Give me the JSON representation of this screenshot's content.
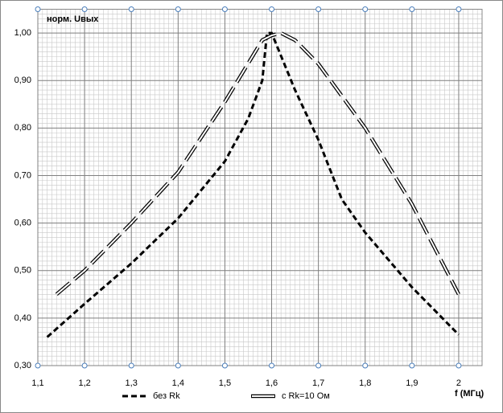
{
  "chart_data": {
    "type": "line",
    "y_label": "норм. Uвых",
    "x_label": "f (МГц)",
    "xlim": [
      1.1,
      2.05
    ],
    "xticks": [
      {
        "value": 1.1,
        "label": "1,1"
      },
      {
        "value": 1.2,
        "label": "1,2"
      },
      {
        "value": 1.3,
        "label": "1,3"
      },
      {
        "value": 1.4,
        "label": "1,4"
      },
      {
        "value": 1.5,
        "label": "1,5"
      },
      {
        "value": 1.6,
        "label": "1,6"
      },
      {
        "value": 1.7,
        "label": "1,7"
      },
      {
        "value": 1.8,
        "label": "1,8"
      },
      {
        "value": 1.9,
        "label": "1,9"
      },
      2
    ],
    "ylim": [
      0.3,
      1.05
    ],
    "yticks": [
      {
        "value": 0.3,
        "label": "0,30"
      },
      {
        "value": 0.4,
        "label": "0,40"
      },
      {
        "value": 0.5,
        "label": "0,50"
      },
      {
        "value": 0.6,
        "label": "0,60"
      },
      {
        "value": 0.7,
        "label": "0,70"
      },
      {
        "value": 0.8,
        "label": "0,80"
      },
      {
        "value": 0.9,
        "label": "0,90"
      },
      {
        "value": 1.0,
        "label": "1,00"
      }
    ],
    "grid": true,
    "series": [
      {
        "name": "без Rk",
        "color": "#000000",
        "style": "dashed",
        "x": [
          1.12,
          1.2,
          1.3,
          1.4,
          1.5,
          1.55,
          1.58,
          1.59,
          1.6,
          1.65,
          1.7,
          1.75,
          1.8,
          1.9,
          2.0
        ],
        "values": [
          0.36,
          0.43,
          0.515,
          0.61,
          0.73,
          0.82,
          0.9,
          1.0,
          1.0,
          0.88,
          0.775,
          0.65,
          0.58,
          0.465,
          0.365
        ]
      },
      {
        "name": "с Rk=10 Ом",
        "color": "#000000",
        "style": "double",
        "x": [
          1.14,
          1.2,
          1.3,
          1.4,
          1.5,
          1.58,
          1.6,
          1.62,
          1.65,
          1.7,
          1.8,
          1.9,
          2.0
        ],
        "values": [
          0.45,
          0.5,
          0.6,
          0.707,
          0.855,
          0.985,
          0.995,
          1.0,
          0.985,
          0.935,
          0.8,
          0.64,
          0.45
        ]
      }
    ]
  }
}
